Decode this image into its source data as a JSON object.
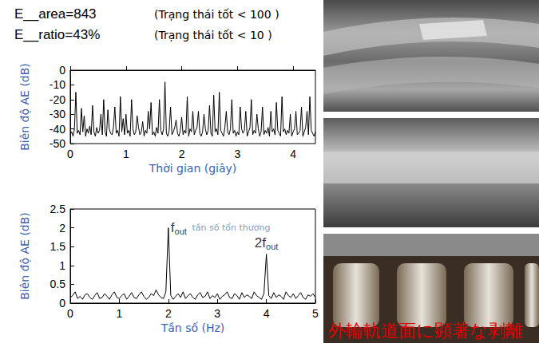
{
  "header": [
    {
      "text": "E__area=843",
      "note": "(Trạng thái tốt < 100 )"
    },
    {
      "text": "E__ratio=43%",
      "note": "(Trạng thái tốt < 10 )"
    }
  ],
  "chart_data": [
    {
      "type": "line",
      "x_label": "Thời gian (giây)",
      "y_label": "Biên độ AE (dB)",
      "color": "#000000",
      "grid": false,
      "xlim": [
        0,
        4.4
      ],
      "xticks": [
        0,
        1,
        2,
        3,
        4
      ],
      "ylim": [
        -50,
        0
      ],
      "yticks": [
        -50,
        -40,
        -30,
        -20,
        -10,
        0
      ],
      "x": [
        0,
        0.025,
        0.05,
        0.075,
        0.1,
        0.125,
        0.15,
        0.175,
        0.2,
        0.225,
        0.25,
        0.275,
        0.3,
        0.325,
        0.35,
        0.375,
        0.4,
        0.425,
        0.45,
        0.475,
        0.5,
        0.525,
        0.55,
        0.575,
        0.6,
        0.625,
        0.65,
        0.675,
        0.7,
        0.725,
        0.75,
        0.775,
        0.8,
        0.825,
        0.85,
        0.875,
        0.9,
        0.925,
        0.95,
        0.975,
        1,
        1.025,
        1.05,
        1.075,
        1.1,
        1.125,
        1.15,
        1.175,
        1.2,
        1.225,
        1.25,
        1.275,
        1.3,
        1.325,
        1.35,
        1.375,
        1.4,
        1.425,
        1.45,
        1.475,
        1.5,
        1.525,
        1.55,
        1.575,
        1.6,
        1.625,
        1.65,
        1.675,
        1.7,
        1.725,
        1.75,
        1.775,
        1.8,
        1.825,
        1.85,
        1.875,
        1.9,
        1.925,
        1.95,
        1.975,
        2,
        2.025,
        2.05,
        2.075,
        2.1,
        2.125,
        2.15,
        2.175,
        2.2,
        2.225,
        2.25,
        2.275,
        2.3,
        2.325,
        2.35,
        2.375,
        2.4,
        2.425,
        2.45,
        2.475,
        2.5,
        2.525,
        2.55,
        2.575,
        2.6,
        2.625,
        2.65,
        2.675,
        2.7,
        2.725,
        2.75,
        2.775,
        2.8,
        2.825,
        2.85,
        2.875,
        2.9,
        2.925,
        2.95,
        2.975,
        3,
        3.025,
        3.05,
        3.075,
        3.1,
        3.125,
        3.15,
        3.175,
        3.2,
        3.225,
        3.25,
        3.275,
        3.3,
        3.325,
        3.35,
        3.375,
        3.4,
        3.425,
        3.45,
        3.475,
        3.5,
        3.525,
        3.55,
        3.575,
        3.6,
        3.625,
        3.65,
        3.675,
        3.7,
        3.725,
        3.75,
        3.775,
        3.8,
        3.825,
        3.85,
        3.875,
        3.9,
        3.925,
        3.95,
        3.975,
        4,
        4.025,
        4.05,
        4.075,
        4.1,
        4.125,
        4.15,
        4.175,
        4.2,
        4.225,
        4.25,
        4.275,
        4.3,
        4.325,
        4.35,
        4.375,
        4.4
      ],
      "values": [
        -44,
        -42,
        -45,
        -40,
        -15,
        -43,
        -41,
        -44,
        -26,
        -42,
        -31,
        -45,
        -40,
        -43,
        -38,
        -44,
        -24,
        -42,
        -45,
        -39,
        -43,
        -41,
        -30,
        -44,
        -20,
        -42,
        -45,
        -27,
        -40,
        -43,
        -44,
        -39,
        -25,
        -43,
        -41,
        -45,
        -18,
        -42,
        -33,
        -44,
        -30,
        -43,
        -41,
        -45,
        -20,
        -40,
        -44,
        -42,
        -31,
        -39,
        -44,
        -42,
        -35,
        -45,
        -41,
        -43,
        -28,
        -40,
        -22,
        -44,
        -42,
        -45,
        -39,
        -43,
        -20,
        -41,
        -44,
        -40,
        -8,
        -43,
        -45,
        -41,
        -25,
        -44,
        -42,
        -39,
        -34,
        -43,
        -45,
        -41,
        -32,
        -44,
        -41,
        -43,
        -18,
        -45,
        -40,
        -42,
        -28,
        -44,
        -41,
        -39,
        -28,
        -43,
        -45,
        -42,
        -30,
        -40,
        -44,
        -41,
        -24,
        -43,
        -45,
        -17,
        -42,
        -40,
        -44,
        -15,
        -41,
        -43,
        -45,
        -39,
        -28,
        -42,
        -44,
        -40,
        -20,
        -43,
        -41,
        -45,
        -42,
        -44,
        -25,
        -40,
        -43,
        -41,
        -28,
        -45,
        -42,
        -39,
        -20,
        -44,
        -41,
        -43,
        -30,
        -40,
        -45,
        -42,
        -25,
        -44,
        -41,
        -43,
        -39,
        -45,
        -28,
        -42,
        -40,
        -44,
        -22,
        -41,
        -43,
        -45,
        -18,
        -42,
        -40,
        -44,
        -41,
        -43,
        -30,
        -45,
        -42,
        -40,
        -28,
        -44,
        -43,
        -41,
        -25,
        -45,
        -42,
        -39,
        -28,
        -44,
        -18,
        -41,
        -43,
        -45,
        -42
      ]
    },
    {
      "type": "line",
      "x_label": "Tần số (Hz)",
      "y_label": "Biên độ AE (dB)",
      "color": "#000000",
      "grid": false,
      "xlim": [
        0,
        5
      ],
      "xticks": [
        0,
        1,
        2,
        3,
        4,
        5
      ],
      "ylim": [
        0,
        2.5
      ],
      "yticks": [
        0,
        0.5,
        1,
        1.5,
        2,
        2.5
      ],
      "x": [
        0,
        0.05,
        0.1,
        0.15,
        0.2,
        0.25,
        0.3,
        0.35,
        0.4,
        0.45,
        0.5,
        0.55,
        0.6,
        0.65,
        0.7,
        0.75,
        0.8,
        0.85,
        0.9,
        0.95,
        1,
        1.05,
        1.1,
        1.15,
        1.2,
        1.25,
        1.3,
        1.35,
        1.4,
        1.45,
        1.5,
        1.55,
        1.6,
        1.65,
        1.7,
        1.75,
        1.8,
        1.85,
        1.9,
        1.95,
        2,
        2.05,
        2.1,
        2.15,
        2.2,
        2.25,
        2.3,
        2.35,
        2.4,
        2.45,
        2.5,
        2.55,
        2.6,
        2.65,
        2.7,
        2.75,
        2.8,
        2.85,
        2.9,
        2.95,
        3,
        3.05,
        3.1,
        3.15,
        3.2,
        3.25,
        3.3,
        3.35,
        3.4,
        3.45,
        3.5,
        3.55,
        3.6,
        3.65,
        3.7,
        3.75,
        3.8,
        3.85,
        3.9,
        3.95,
        4,
        4.05,
        4.1,
        4.15,
        4.2,
        4.25,
        4.3,
        4.35,
        4.4,
        4.45,
        4.5,
        4.55,
        4.6,
        4.65,
        4.7,
        4.75,
        4.8,
        4.85,
        4.9,
        4.95,
        5
      ],
      "values": [
        0.15,
        0.2,
        0.3,
        0.12,
        0.18,
        0.1,
        0.22,
        0.25,
        0.15,
        0.1,
        0.2,
        0.28,
        0.12,
        0.15,
        0.25,
        0.18,
        0.1,
        0.22,
        0.3,
        0.15,
        0.12,
        0.2,
        0.25,
        0.1,
        0.18,
        0.28,
        0.15,
        0.12,
        0.22,
        0.3,
        0.18,
        0.1,
        0.15,
        0.25,
        0.2,
        0.35,
        0.22,
        0.15,
        0.12,
        0.3,
        2,
        0.2,
        0.1,
        0.18,
        0.25,
        0.15,
        0.3,
        0.12,
        0.2,
        0.25,
        0.15,
        0.1,
        0.22,
        0.28,
        0.15,
        0.18,
        0.3,
        0.12,
        0.2,
        0.15,
        0.25,
        0.1,
        0.18,
        0.22,
        0.3,
        0.15,
        0.12,
        0.25,
        0.2,
        0.1,
        0.28,
        0.15,
        0.22,
        0.18,
        0.12,
        0.3,
        0.2,
        0.15,
        0.1,
        0.25,
        1.3,
        0.2,
        0.12,
        0.28,
        0.15,
        0.22,
        0.18,
        0.1,
        0.3,
        0.2,
        0.15,
        0.25,
        0.12,
        0.2,
        0.28,
        0.15,
        0.1,
        0.22,
        0.18,
        0.25,
        0.15
      ],
      "annotations": [
        {
          "x": 2,
          "text": "f",
          "sub": "out",
          "note": "tần số tổn thương"
        },
        {
          "x": 4,
          "text": "2f",
          "sub": "out"
        }
      ]
    }
  ],
  "photos": {
    "caption": "外輪軌道面に顕著な剥離"
  }
}
